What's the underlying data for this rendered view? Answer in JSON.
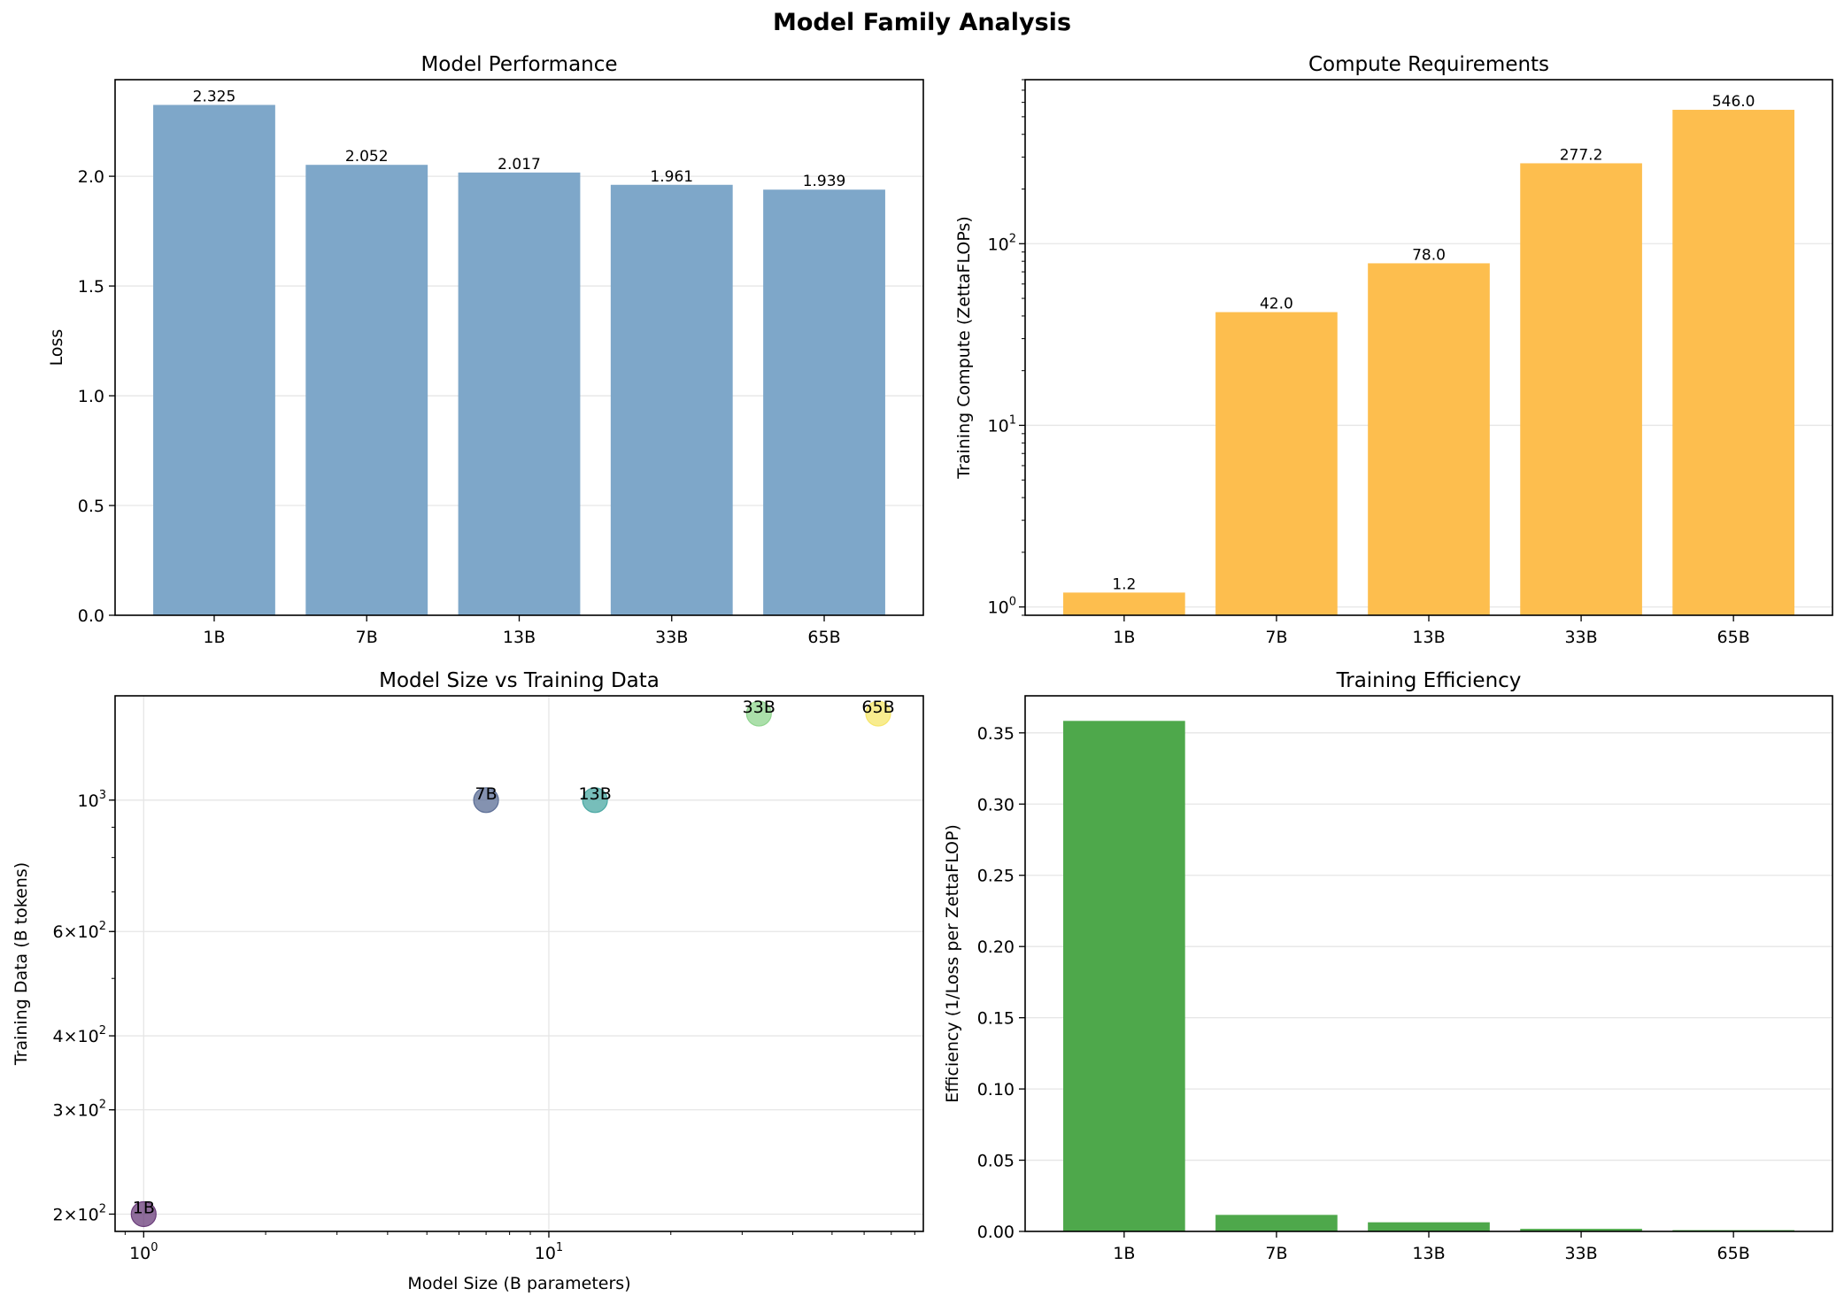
{
  "figure_title": "Model Family Analysis",
  "colors": {
    "performance_bar": "#7ea7c9",
    "compute_bar": "#fdbe4e",
    "efficiency_bar": "#4ea84b",
    "grid": "#e6e6e6",
    "scatter_1B": "#6a3c7a",
    "scatter_7B": "#5b6d95",
    "scatter_13B": "#4aa8a3",
    "scatter_33B": "#8fd48e",
    "scatter_65B": "#f5e56a"
  },
  "chart_data": [
    {
      "id": "performance",
      "type": "bar",
      "title": "Model Performance",
      "xlabel": "",
      "ylabel": "Loss",
      "categories": [
        "1B",
        "7B",
        "13B",
        "33B",
        "65B"
      ],
      "values": [
        2.325,
        2.052,
        2.017,
        1.961,
        1.939
      ],
      "data_labels": [
        "2.325",
        "2.052",
        "2.017",
        "1.961",
        "1.939"
      ],
      "ylim": [
        0,
        2.44
      ],
      "yticks": [
        0.0,
        0.5,
        1.0,
        1.5,
        2.0
      ],
      "ytick_labels": [
        "0.0",
        "0.5",
        "1.0",
        "1.5",
        "2.0"
      ],
      "grid": "y"
    },
    {
      "id": "compute",
      "type": "bar",
      "title": "Compute Requirements",
      "xlabel": "",
      "ylabel": "Training Compute (ZettaFLOPs)",
      "yscale": "log",
      "categories": [
        "1B",
        "7B",
        "13B",
        "33B",
        "65B"
      ],
      "values": [
        1.2,
        42.0,
        78.0,
        277.2,
        546.0
      ],
      "data_labels": [
        "1.2",
        "42.0",
        "78.0",
        "277.2",
        "546.0"
      ],
      "ylim": [
        0.9,
        800
      ],
      "ytick_major": [
        1,
        10,
        100
      ],
      "ytick_base": "10",
      "ytick_exponents": [
        "0",
        "1",
        "2"
      ],
      "grid": "y"
    },
    {
      "id": "scaling",
      "type": "scatter",
      "title": "Model Size vs Training Data",
      "xlabel": "Model Size (B parameters)",
      "ylabel": "Training Data (B tokens)",
      "xscale": "log",
      "yscale": "log",
      "points": [
        {
          "label": "1B",
          "x": 1,
          "y": 200
        },
        {
          "label": "7B",
          "x": 7,
          "y": 1000
        },
        {
          "label": "13B",
          "x": 13,
          "y": 1000
        },
        {
          "label": "33B",
          "x": 33,
          "y": 1400
        },
        {
          "label": "65B",
          "x": 65,
          "y": 1400
        }
      ],
      "xlim": [
        0.85,
        84
      ],
      "ylim": [
        187,
        1500
      ],
      "xtick_major": [
        1,
        10
      ],
      "xtick_base": "10",
      "xtick_exponents": [
        "0",
        "1"
      ],
      "ytick_major": [
        200,
        300,
        400,
        600,
        1000
      ],
      "ytick_labels": [
        {
          "mantissa": "2",
          "base": "10",
          "exp": "2"
        },
        {
          "mantissa": "3",
          "base": "10",
          "exp": "2"
        },
        {
          "mantissa": "4",
          "base": "10",
          "exp": "2"
        },
        {
          "mantissa": "6",
          "base": "10",
          "exp": "2"
        },
        {
          "mantissa": "",
          "base": "10",
          "exp": "3"
        }
      ],
      "grid": "both"
    },
    {
      "id": "efficiency",
      "type": "bar",
      "title": "Training Efficiency",
      "xlabel": "",
      "ylabel": "Efficiency (1/Loss per ZettaFLOP)",
      "categories": [
        "1B",
        "7B",
        "13B",
        "33B",
        "65B"
      ],
      "values": [
        0.3584,
        0.0116,
        0.0064,
        0.0018,
        0.0009
      ],
      "ylim": [
        0,
        0.376
      ],
      "yticks": [
        0.0,
        0.05,
        0.1,
        0.15,
        0.2,
        0.25,
        0.3,
        0.35
      ],
      "ytick_labels": [
        "0.00",
        "0.05",
        "0.10",
        "0.15",
        "0.20",
        "0.25",
        "0.30",
        "0.35"
      ],
      "grid": "y"
    }
  ]
}
